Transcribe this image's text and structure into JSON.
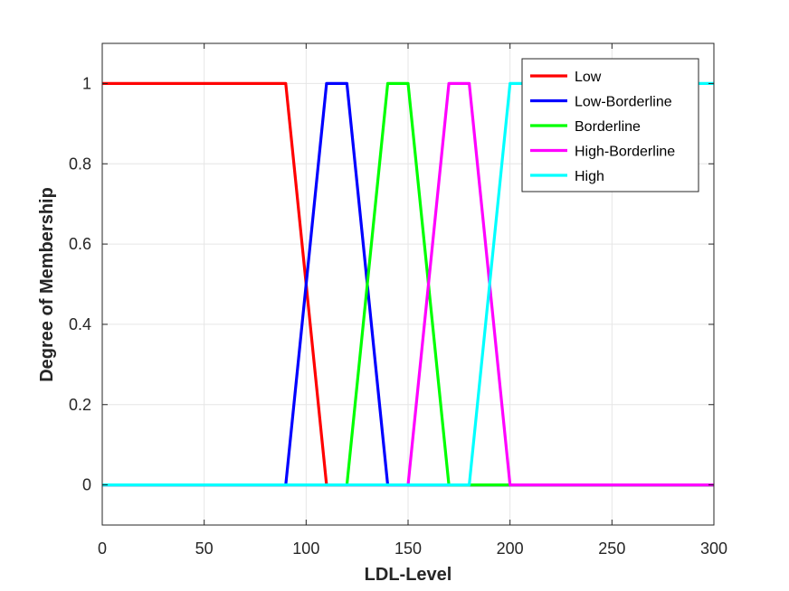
{
  "chart_data": {
    "type": "line",
    "xlabel": "LDL-Level",
    "ylabel": "Degree of Membership",
    "xlim": [
      0,
      300
    ],
    "ylim": [
      -0.1,
      1.1
    ],
    "xticks": [
      0,
      50,
      100,
      150,
      200,
      250,
      300
    ],
    "yticks": [
      0,
      0.2,
      0.4,
      0.6,
      0.8,
      1
    ],
    "xtick_labels": [
      "0",
      "50",
      "100",
      "150",
      "200",
      "250",
      "300"
    ],
    "ytick_labels": [
      "0",
      "0.2",
      "0.4",
      "0.6",
      "0.8",
      "1"
    ],
    "grid": true,
    "legend_position": "top-right",
    "series": [
      {
        "name": "Low",
        "color": "#ff0000",
        "x": [
          0,
          90,
          110,
          300
        ],
        "y": [
          1,
          1,
          0,
          0
        ]
      },
      {
        "name": "Low-Borderline",
        "color": "#0000ff",
        "x": [
          0,
          90,
          110,
          120,
          140,
          300
        ],
        "y": [
          0,
          0,
          1,
          1,
          0,
          0
        ]
      },
      {
        "name": "Borderline",
        "color": "#00ff00",
        "x": [
          0,
          120,
          140,
          150,
          170,
          300
        ],
        "y": [
          0,
          0,
          1,
          1,
          0,
          0
        ]
      },
      {
        "name": "High-Borderline",
        "color": "#ff00ff",
        "x": [
          0,
          150,
          170,
          180,
          200,
          300
        ],
        "y": [
          0,
          0,
          1,
          1,
          0,
          0
        ]
      },
      {
        "name": "High",
        "color": "#00ffff",
        "x": [
          0,
          180,
          200,
          300
        ],
        "y": [
          0,
          0,
          1,
          1
        ]
      }
    ]
  }
}
